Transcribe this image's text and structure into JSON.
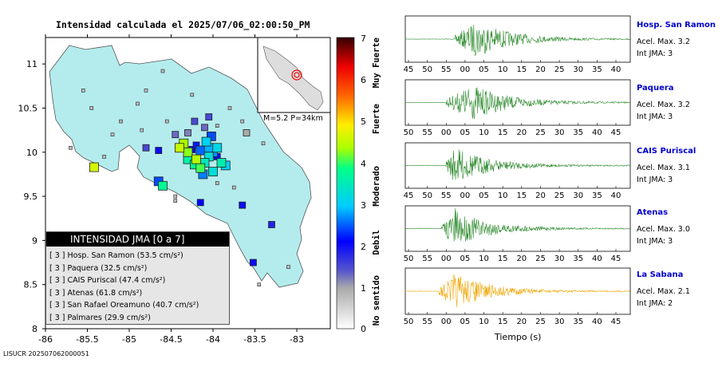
{
  "title": "Intensidad calculada el 2025/07/06_02:00:50_PM",
  "footer": "LISUCR 202507062000051",
  "inset_label": "M=5.2  P=34km",
  "colorbar": {
    "ticks": [
      "0",
      "1",
      "2",
      "3",
      "4",
      "5",
      "6",
      "7"
    ],
    "words": [
      "No sentido",
      "Debil",
      "Moderado",
      "Fuerte",
      "Muy Fuerte"
    ]
  },
  "legend": {
    "header": "INTENSIDAD JMA [0 a 7]",
    "rows": [
      "[ 3 ]  Hosp. San Ramon (53.5 cm/s²)",
      "[ 3 ]  Paquera (32.5 cm/s²)",
      "[ 3 ]  CAIS Puriscal (47.4 cm/s²)",
      "[ 3 ]  Atenas (61.8 cm/s²)",
      "[ 3 ]  San Rafael Oreamuno (40.7 cm/s²)",
      "[ 3 ]  Palmares (29.9 cm/s²)"
    ]
  },
  "map_axes": {
    "x_ticks": [
      "-86",
      "-85.5",
      "-85",
      "-84.5",
      "-84",
      "-83.5",
      "-83"
    ],
    "y_ticks": [
      "11",
      "10.5",
      "10",
      "9.5",
      "9",
      "8.5",
      "8"
    ]
  },
  "stations": [
    {
      "name": "Hosp. San Ramon",
      "acel": "Acel. Max. 3.2",
      "int": "Int JMA: 3",
      "color": "#2e8b2e",
      "ticks": [
        "45",
        "50",
        "55",
        "00",
        "05",
        "10",
        "15",
        "20",
        "25",
        "30",
        "35",
        "40"
      ]
    },
    {
      "name": "Paquera",
      "acel": "Acel. Max. 3.2",
      "int": "Int JMA: 3",
      "color": "#2e8b2e",
      "ticks": [
        "50",
        "55",
        "00",
        "05",
        "10",
        "15",
        "20",
        "25",
        "30",
        "35",
        "40",
        "45"
      ]
    },
    {
      "name": "CAIS Puriscal",
      "acel": "Acel. Max. 3.1",
      "int": "Int JMA: 3",
      "color": "#2e8b2e",
      "ticks": [
        "45",
        "50",
        "55",
        "00",
        "05",
        "10",
        "15",
        "20",
        "25",
        "30",
        "35",
        "40"
      ]
    },
    {
      "name": "Atenas",
      "acel": "Acel. Max. 3.0",
      "int": "Int JMA: 3",
      "color": "#2e8b2e",
      "ticks": [
        "50",
        "55",
        "00",
        "05",
        "10",
        "15",
        "20",
        "25",
        "30",
        "35",
        "40",
        "45"
      ]
    },
    {
      "name": "La Sabana",
      "acel": "Acel. Max. 2.1",
      "int": "Int JMA: 2",
      "color": "#f0a500",
      "ticks": [
        "50",
        "55",
        "00",
        "05",
        "10",
        "15",
        "20",
        "25",
        "30",
        "35",
        "40",
        "45"
      ]
    }
  ],
  "xlabel": "Tiempo (s)",
  "chart_data": {
    "type": "scatter",
    "title": "Intensidad calculada el 2025/07/06_02:00:50_PM",
    "xlabel": "",
    "ylabel": "",
    "xlim": [
      -86,
      -82.6
    ],
    "ylim": [
      8,
      11.3
    ],
    "colorbar_range": [
      0,
      7
    ],
    "series": [
      {
        "points": [
          [
            -84.4,
            10.05,
            4.5
          ],
          [
            -84.3,
            10.0,
            4.2
          ],
          [
            -84.2,
            10.08,
            2.2
          ],
          [
            -84.15,
            10.02,
            2.5
          ],
          [
            -84.08,
            10.12,
            3.0
          ],
          [
            -84.05,
            9.95,
            3.2
          ],
          [
            -84.0,
            10.0,
            2.7
          ],
          [
            -83.95,
            10.05,
            3.1
          ],
          [
            -84.1,
            9.88,
            3.4
          ],
          [
            -84.15,
            9.82,
            4.0
          ],
          [
            -84.2,
            9.92,
            4.4
          ],
          [
            -84.25,
            10.03,
            2.0
          ],
          [
            -83.9,
            9.88,
            3.5
          ],
          [
            -83.85,
            9.85,
            3.0
          ],
          [
            -84.0,
            9.78,
            3.2
          ],
          [
            -84.12,
            9.75,
            2.6
          ],
          [
            -83.95,
            9.95,
            2.0
          ],
          [
            -84.35,
            10.1,
            4.3
          ],
          [
            -84.02,
            10.18,
            2.4
          ],
          [
            -84.3,
            9.92,
            3.6
          ],
          [
            -84.22,
            9.86,
            3.8
          ],
          [
            -84.05,
            10.05,
            2.8
          ],
          [
            -85.42,
            9.83,
            4.6
          ],
          [
            -84.65,
            9.67,
            2.4
          ],
          [
            -84.6,
            9.62,
            3.7
          ],
          [
            -84.15,
            9.43,
            2.1
          ],
          [
            -83.65,
            9.4,
            2.0
          ],
          [
            -83.3,
            9.18,
            1.8
          ],
          [
            -84.22,
            10.35,
            1.5
          ],
          [
            -84.1,
            10.28,
            1.3
          ],
          [
            -84.3,
            10.22,
            1.2
          ],
          [
            -84.05,
            10.4,
            1.5
          ],
          [
            -83.6,
            10.22,
            1.0
          ],
          [
            -83.95,
            10.3,
            0.9
          ],
          [
            -84.55,
            10.35,
            0.8
          ],
          [
            -84.45,
            10.2,
            1.3
          ],
          [
            -84.65,
            10.02,
            2.0
          ],
          [
            -84.8,
            10.05,
            1.5
          ],
          [
            -85.1,
            10.35,
            0.9
          ],
          [
            -85.45,
            10.5,
            0.8
          ],
          [
            -85.55,
            10.7,
            0.8
          ],
          [
            -84.6,
            10.92,
            0.8
          ],
          [
            -84.9,
            10.55,
            0.8
          ],
          [
            -84.25,
            10.65,
            0.8
          ],
          [
            -83.8,
            10.5,
            0.8
          ],
          [
            -83.4,
            10.1,
            0.8
          ],
          [
            -83.75,
            9.6,
            0.8
          ],
          [
            -84.45,
            9.5,
            0.8
          ],
          [
            -83.52,
            8.75,
            2.0
          ],
          [
            -83.45,
            8.5,
            0.8
          ],
          [
            -83.1,
            8.7,
            0.8
          ],
          [
            -85.2,
            10.2,
            0.8
          ],
          [
            -84.85,
            10.25,
            0.8
          ],
          [
            -85.7,
            10.05,
            0.8
          ],
          [
            -83.95,
            9.65,
            0.8
          ],
          [
            -84.45,
            9.45,
            0.8
          ],
          [
            -83.65,
            10.35,
            0.8
          ],
          [
            -84.8,
            10.7,
            0.8
          ],
          [
            -85.3,
            9.95,
            0.8
          ]
        ]
      }
    ]
  }
}
